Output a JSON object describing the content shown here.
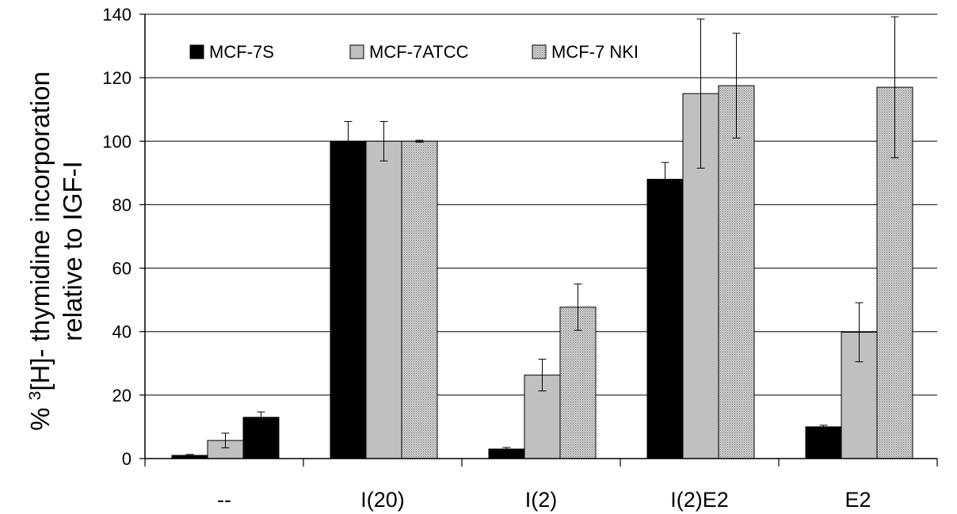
{
  "chart_data": {
    "type": "bar",
    "title": "",
    "ylabel_prefix": "% ",
    "ylabel_sup": "3",
    "ylabel_rest": "[H]- thymidine incorporation",
    "ylabel_line2": "relative to IGF-I",
    "xlabel": "",
    "ylim": [
      0,
      140
    ],
    "yticks": [
      "0",
      "20",
      "40",
      "60",
      "80",
      "100",
      "120",
      "140"
    ],
    "grid": true,
    "legend_position": "top-left",
    "categories": [
      "--",
      "I(20)",
      "I(2)",
      "I(2)E2",
      "E2"
    ],
    "series": [
      {
        "name": "MCF-7S",
        "color": "#000000",
        "pattern": "solid",
        "values": [
          1,
          100,
          3,
          88,
          10
        ],
        "errors": [
          0.3,
          6.2,
          0.5,
          5.3,
          0.5
        ]
      },
      {
        "name": "MCF-7ATCC",
        "color": "#c0c0c0",
        "pattern": "solid",
        "values": [
          5.7,
          100,
          26.3,
          115,
          39.8
        ],
        "errors": [
          2.3,
          6.2,
          5,
          23.5,
          9.3
        ]
      },
      {
        "name": "MCF-7 NKI",
        "color": "#a6a6a6",
        "pattern": "dotted",
        "values": [
          13,
          100,
          47.7,
          117.5,
          117
        ],
        "errors": [
          1.7,
          0.3,
          7.3,
          16.5,
          22.2
        ]
      }
    ],
    "first_group_third_bar_color": "#000000"
  }
}
